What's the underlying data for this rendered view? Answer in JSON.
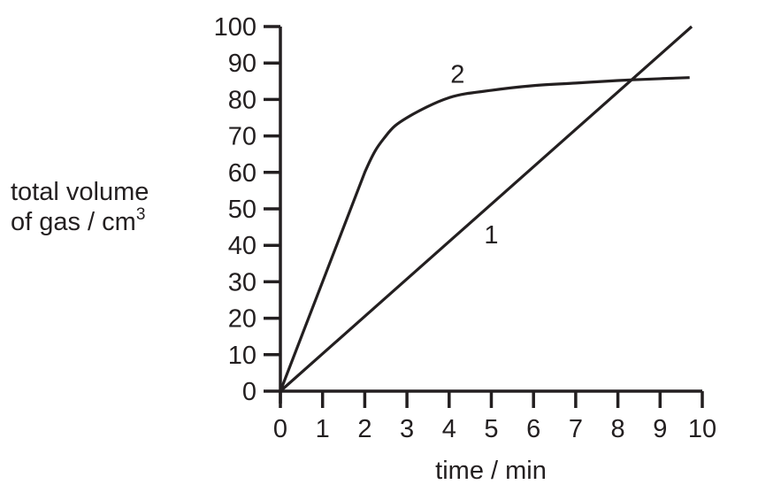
{
  "chart_data": {
    "type": "line",
    "title": "",
    "xlabel": "time / min",
    "ylabel": "total volume of gas / cm3",
    "ylabel_line1": "total volume",
    "ylabel_line2": "of gas / cm",
    "ylabel_superscript": "3",
    "xlim": [
      0,
      10
    ],
    "ylim": [
      0,
      100
    ],
    "x_ticks": [
      "0",
      "1",
      "2",
      "3",
      "4",
      "5",
      "6",
      "7",
      "8",
      "9",
      "10"
    ],
    "y_ticks": [
      "0",
      "10",
      "20",
      "30",
      "40",
      "50",
      "60",
      "70",
      "80",
      "90",
      "100"
    ],
    "grid": false,
    "legend": "inline labels",
    "series": [
      {
        "name": "1",
        "x": [
          0,
          9.75
        ],
        "values": [
          0,
          100
        ],
        "label_position": {
          "x": 5.0,
          "y": 43
        }
      },
      {
        "name": "2",
        "x": [
          0,
          1,
          2,
          2.5,
          3,
          4,
          5,
          6,
          7,
          8,
          9,
          9.7
        ],
        "values": [
          0,
          30,
          60,
          70,
          75,
          80.5,
          82.5,
          83.8,
          84.5,
          85.2,
          85.7,
          86
        ],
        "label_position": {
          "x": 4.2,
          "y": 87
        }
      }
    ],
    "line_color": "#231f20"
  }
}
